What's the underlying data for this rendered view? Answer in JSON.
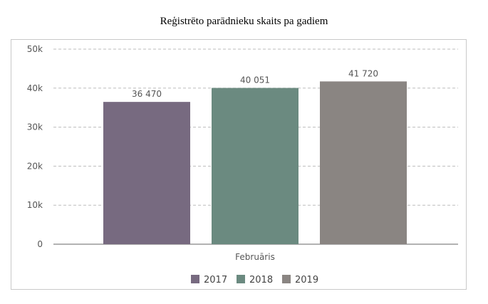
{
  "chart_data": {
    "type": "bar",
    "title": "Reģistrēto parādnieku skaits pa gadiem",
    "categories": [
      "Februāris"
    ],
    "series": [
      {
        "name": "2017",
        "values": [
          36470
        ],
        "label": "36 470",
        "color": "#776a80"
      },
      {
        "name": "2018",
        "values": [
          40051
        ],
        "label": "40 051",
        "color": "#6b8a80"
      },
      {
        "name": "2019",
        "values": [
          41720
        ],
        "label": "41 720",
        "color": "#8a8582"
      }
    ],
    "ylim": [
      0,
      50000
    ],
    "yticks": [
      0,
      10000,
      20000,
      30000,
      40000,
      50000
    ],
    "ytick_labels": [
      "0",
      "10k",
      "20k",
      "30k",
      "40k",
      "50k"
    ],
    "grid": true,
    "legend_position": "bottom"
  }
}
